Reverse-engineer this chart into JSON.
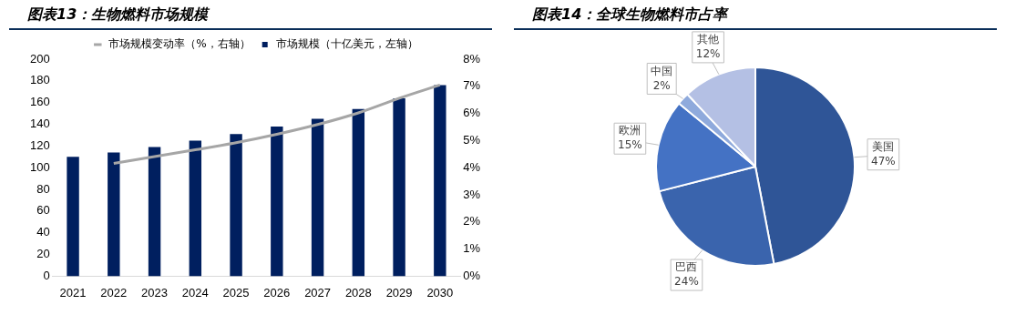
{
  "chart_data": [
    {
      "type": "bar",
      "title": "图表13：生物燃料市场规模",
      "categories": [
        "2021",
        "2022",
        "2023",
        "2024",
        "2025",
        "2026",
        "2027",
        "2028",
        "2029",
        "2030"
      ],
      "series": [
        {
          "name": "市场规模（十亿美元，左轴）",
          "type": "bar",
          "color": "#001f5f",
          "values": [
            110,
            114,
            119,
            125,
            131,
            138,
            145,
            154,
            164,
            176
          ]
        },
        {
          "name": "市场规模变动率（%，右轴）",
          "type": "line",
          "axis": "y2",
          "color": "#a6a6a6",
          "values": [
            null,
            4.16,
            4.41,
            4.66,
            4.92,
            5.23,
            5.59,
            6.02,
            6.56,
            7.05
          ]
        }
      ],
      "ylim": [
        0,
        200
      ],
      "yticks": [
        0,
        20,
        40,
        60,
        80,
        100,
        120,
        140,
        160,
        180,
        200
      ],
      "y2lim": [
        0,
        8
      ],
      "y2ticks": [
        {
          "value": 0,
          "label": "0%"
        },
        {
          "value": 1,
          "label": "1%"
        },
        {
          "value": 2,
          "label": "2%"
        },
        {
          "value": 3,
          "label": "3%"
        },
        {
          "value": 4,
          "label": "4%"
        },
        {
          "value": 5,
          "label": "5%"
        },
        {
          "value": 6,
          "label": "6%"
        },
        {
          "value": 7,
          "label": "7%"
        },
        {
          "value": 8,
          "label": "8%"
        }
      ],
      "grid": false,
      "legend": "top",
      "marker": "none",
      "line_style": "solid"
    },
    {
      "type": "pie",
      "title": "图表14：全球生物燃料市占率",
      "categories": [
        "美国",
        "巴西",
        "欧洲",
        "中国",
        "其他"
      ],
      "values": [
        47,
        24,
        15,
        2,
        12
      ],
      "colors": [
        "#2f5597",
        "#3a64ad",
        "#4472c4",
        "#8faadc",
        "#b4c0e4"
      ],
      "value_labels": [
        "47%",
        "24%",
        "15%",
        "2%",
        "12%"
      ],
      "legend": false
    }
  ]
}
